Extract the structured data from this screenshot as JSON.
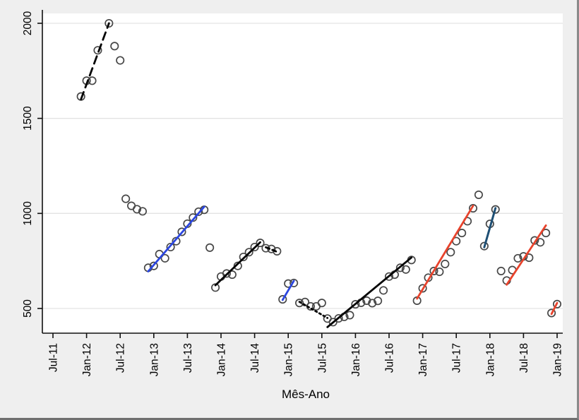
{
  "window": {
    "outer_background": "#efefef",
    "plot_background": "#ffffff",
    "border_color": "#8a8a8a"
  },
  "chart_data": {
    "type": "scatter",
    "title": "",
    "xlabel": "Mês-Ano",
    "ylabel": "",
    "grid": "horizontal",
    "legend": "none",
    "point_marker": "hollow-circle",
    "y_ticks": [
      500,
      1000,
      1500,
      2000
    ],
    "ylim": [
      380,
      2070
    ],
    "x_tick_labels": [
      "Jul-11",
      "Jan-12",
      "Jul-12",
      "Jan-13",
      "Jul-13",
      "Jan-14",
      "Jul-14",
      "Jan-15",
      "Jul-15",
      "Jan-16",
      "Jul-16",
      "Jan-17",
      "Jul-17",
      "Jan-18",
      "Jul-18",
      "Jan-19"
    ],
    "colors": {
      "fit_black": "#050505",
      "fit_blue": "#2b46e0",
      "fit_red": "#e8432c",
      "fit_navy": "#1e4f74",
      "marker_stroke": "#474747",
      "grid": "#e3e3e3",
      "axis": "#111111"
    },
    "groups": [
      {
        "name": "segment-2011-2012",
        "points": [
          [
            "Dec-11",
            1615
          ],
          [
            "Jan-12",
            1698
          ],
          [
            "Feb-12",
            1698
          ],
          [
            "Mar-12",
            1858
          ],
          [
            "May-12",
            2000
          ],
          [
            "Jun-12",
            1880
          ],
          [
            "Jul-12",
            1805
          ]
        ],
        "fit": {
          "color": "black",
          "style": "long-dash",
          "from": [
            "Dec-11",
            1600
          ],
          "to": [
            "May-12",
            2000
          ]
        }
      },
      {
        "name": "decline-late-2012",
        "points": [
          [
            "Aug-12",
            1077
          ],
          [
            "Sep-12",
            1040
          ],
          [
            "Oct-12",
            1022
          ],
          [
            "Nov-12",
            1011
          ]
        ],
        "fit": null
      },
      {
        "name": "segment-2013-blue",
        "points": [
          [
            "Dec-12",
            714
          ],
          [
            "Jan-13",
            724
          ],
          [
            "Feb-13",
            786
          ],
          [
            "Mar-13",
            764
          ],
          [
            "Apr-13",
            823
          ],
          [
            "May-13",
            854
          ],
          [
            "Jun-13",
            903
          ],
          [
            "Jul-13",
            946
          ],
          [
            "Aug-13",
            978
          ],
          [
            "Sep-13",
            1009
          ],
          [
            "Oct-13",
            1019
          ]
        ],
        "fit": {
          "color": "blue",
          "style": "solid",
          "from": [
            "Dec-12",
            695
          ],
          "to": [
            "Oct-13",
            1035
          ]
        }
      },
      {
        "name": "isolated-nov-13",
        "points": [
          [
            "Nov-13",
            820
          ]
        ],
        "fit": null
      },
      {
        "name": "segment-2014-black",
        "points": [
          [
            "Dec-13",
            610
          ],
          [
            "Jan-14",
            668
          ],
          [
            "Feb-14",
            684
          ],
          [
            "Mar-14",
            678
          ],
          [
            "Apr-14",
            724
          ],
          [
            "May-14",
            771
          ],
          [
            "Jun-14",
            796
          ],
          [
            "Jul-14",
            823
          ],
          [
            "Aug-14",
            845
          ]
        ],
        "fit": {
          "color": "black",
          "style": "solid",
          "from": [
            "Dec-13",
            622
          ],
          "to": [
            "Aug-14",
            848
          ]
        }
      },
      {
        "name": "plateau-late-2014",
        "points": [
          [
            "Sep-14",
            817
          ],
          [
            "Oct-14",
            813
          ],
          [
            "Nov-14",
            801
          ]
        ],
        "fit": {
          "color": "black",
          "style": "short-dash",
          "from": [
            "Sep-14",
            822
          ],
          "to": [
            "Nov-14",
            798
          ]
        }
      },
      {
        "name": "segment-early-2015-blue",
        "points": [
          [
            "Dec-14",
            548
          ],
          [
            "Jan-15",
            631
          ],
          [
            "Feb-15",
            634
          ]
        ],
        "fit": {
          "color": "blue",
          "style": "solid",
          "from": [
            "Dec-14",
            545
          ],
          "to": [
            "Feb-15",
            645
          ]
        }
      },
      {
        "name": "plateau-mid-2015",
        "points": [
          [
            "Mar-15",
            529
          ],
          [
            "Apr-15",
            534
          ],
          [
            "May-15",
            511
          ],
          [
            "Jun-15",
            511
          ],
          [
            "Jul-15",
            529
          ]
        ],
        "fit": {
          "color": "black",
          "style": "dot",
          "from": [
            "Mar-15",
            535
          ],
          "to": [
            "Aug-15",
            450
          ]
        }
      },
      {
        "name": "segment-2016-black",
        "points": [
          [
            "Aug-15",
            447
          ],
          [
            "Sep-15",
            428
          ],
          [
            "Oct-15",
            448
          ],
          [
            "Nov-15",
            456
          ],
          [
            "Dec-15",
            465
          ],
          [
            "Jan-16",
            522
          ],
          [
            "Feb-16",
            530
          ],
          [
            "Mar-16",
            541
          ],
          [
            "Apr-16",
            528
          ],
          [
            "May-16",
            540
          ],
          [
            "Jun-16",
            595
          ],
          [
            "Jul-16",
            668
          ],
          [
            "Aug-16",
            678
          ],
          [
            "Sep-16",
            714
          ],
          [
            "Oct-16",
            705
          ],
          [
            "Nov-16",
            755
          ]
        ],
        "fit": {
          "color": "black",
          "style": "solid",
          "from": [
            "Aug-15",
            402
          ],
          "to": [
            "Nov-16",
            768
          ]
        }
      },
      {
        "name": "segment-2017-red",
        "points": [
          [
            "Dec-16",
            541
          ],
          [
            "Jan-17",
            606
          ],
          [
            "Feb-17",
            662
          ],
          [
            "Mar-17",
            697
          ],
          [
            "Apr-17",
            693
          ],
          [
            "May-17",
            734
          ],
          [
            "Jun-17",
            796
          ],
          [
            "Jul-17",
            854
          ],
          [
            "Aug-17",
            897
          ],
          [
            "Sep-17",
            959
          ],
          [
            "Oct-17",
            1027
          ]
        ],
        "fit": {
          "color": "red",
          "style": "solid",
          "from": [
            "Dec-16",
            552
          ],
          "to": [
            "Oct-17",
            1040
          ]
        }
      },
      {
        "name": "isolated-nov-17",
        "points": [
          [
            "Nov-17",
            1098
          ]
        ],
        "fit": null
      },
      {
        "name": "segment-early-2018-navy",
        "points": [
          [
            "Dec-17",
            828
          ],
          [
            "Jan-18",
            945
          ],
          [
            "Feb-18",
            1021
          ]
        ],
        "fit": {
          "color": "navy",
          "style": "solid",
          "from": [
            "Dec-17",
            822
          ],
          "to": [
            "Feb-18",
            1028
          ]
        }
      },
      {
        "name": "segment-2018-red",
        "points": [
          [
            "Mar-18",
            697
          ],
          [
            "Apr-18",
            647
          ],
          [
            "May-18",
            702
          ],
          [
            "Jun-18",
            764
          ],
          [
            "Jul-18",
            774
          ],
          [
            "Aug-18",
            767
          ],
          [
            "Sep-18",
            858
          ],
          [
            "Oct-18",
            848
          ],
          [
            "Nov-18",
            897
          ]
        ],
        "fit": {
          "color": "red",
          "style": "solid",
          "from": [
            "Apr-18",
            625
          ],
          "to": [
            "Nov-18",
            937
          ]
        }
      },
      {
        "name": "segment-end-2018-red",
        "points": [
          [
            "Dec-18",
            476
          ],
          [
            "Jan-19",
            523
          ]
        ],
        "fit": {
          "color": "red",
          "style": "solid",
          "from": [
            "Dec-18",
            471
          ],
          "to": [
            "Jan-19",
            529
          ]
        }
      }
    ]
  }
}
